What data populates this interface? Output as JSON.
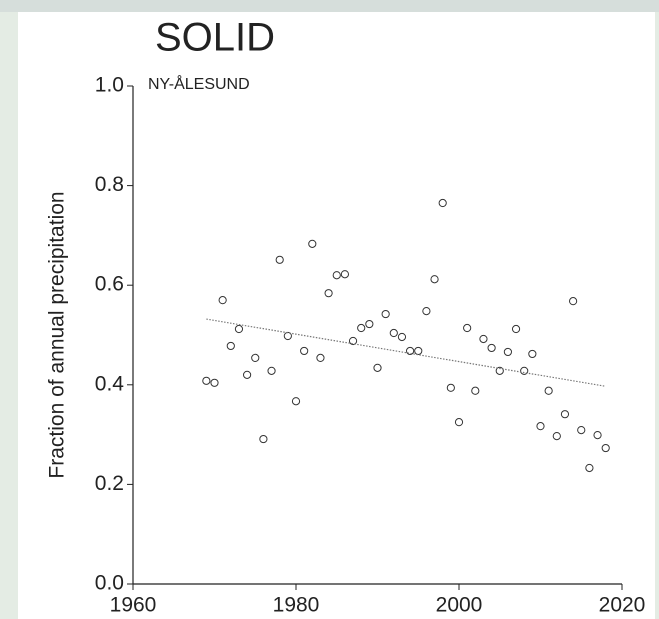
{
  "chart_data": {
    "type": "scatter",
    "title": "SOLID",
    "annotation": "NY-ÅLESUND",
    "ylabel": "Fraction of annual precipitation",
    "color": "#333333",
    "x": [
      1969,
      1970,
      1971,
      1972,
      1973,
      1974,
      1975,
      1976,
      1977,
      1978,
      1979,
      1980,
      1981,
      1982,
      1983,
      1984,
      1985,
      1986,
      1987,
      1988,
      1989,
      1990,
      1991,
      1992,
      1993,
      1994,
      1995,
      1996,
      1997,
      1998,
      1999,
      2000,
      2001,
      2002,
      2003,
      2004,
      2005,
      2006,
      2007,
      2008,
      2009,
      2010,
      2011,
      2012,
      2013,
      2014,
      2015,
      2016,
      2017,
      2018
    ],
    "values": [
      0.408,
      0.404,
      0.57,
      0.478,
      0.512,
      0.42,
      0.454,
      0.291,
      0.428,
      0.651,
      0.498,
      0.367,
      0.468,
      0.683,
      0.454,
      0.584,
      0.62,
      0.622,
      0.488,
      0.514,
      0.522,
      0.434,
      0.542,
      0.504,
      0.496,
      0.468,
      0.468,
      0.548,
      0.612,
      0.765,
      0.394,
      0.325,
      0.514,
      0.388,
      0.492,
      0.474,
      0.428,
      0.466,
      0.512,
      0.428,
      0.462,
      0.317,
      0.388,
      0.297,
      0.341,
      0.568,
      0.309,
      0.233,
      0.299,
      0.273
    ],
    "trend": {
      "x": [
        1969,
        2018
      ],
      "values": [
        0.532,
        0.397
      ]
    },
    "xlim": [
      1960,
      2020
    ],
    "xticks": [
      1960,
      1980,
      2000,
      2020
    ],
    "ylim": [
      0.0,
      1.0
    ],
    "yticks": [
      {
        "value": 0,
        "label": "0.0"
      },
      0.2,
      0.4,
      0.6,
      0.8,
      {
        "value": 1,
        "label": "1.0"
      }
    ]
  }
}
